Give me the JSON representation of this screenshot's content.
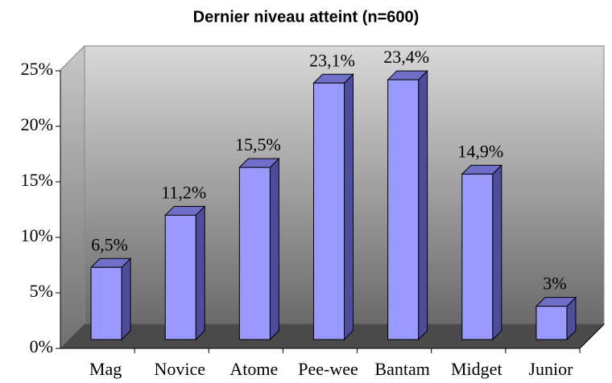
{
  "chart_data": {
    "type": "bar3d",
    "title": "Dernier niveau atteint (n=600)",
    "categories": [
      "Mag",
      "Novice",
      "Atome",
      "Pee-wee",
      "Bantam",
      "Midget",
      "Junior"
    ],
    "values": [
      6.5,
      11.2,
      15.5,
      23.1,
      23.4,
      14.9,
      3
    ],
    "value_labels": [
      "6,5%",
      "11,2%",
      "15,5%",
      "23,1%",
      "23,4%",
      "14,9%",
      "3%"
    ],
    "color": "#9999ff",
    "ylim": [
      0,
      25
    ],
    "yticks": [
      {
        "value": 0,
        "label": "0%"
      },
      {
        "value": 5,
        "label": "5%"
      },
      {
        "value": 10,
        "label": "10%"
      },
      {
        "value": 15,
        "label": "15%"
      },
      {
        "value": 20,
        "label": "20%"
      },
      {
        "value": 25,
        "label": "25%"
      }
    ]
  }
}
